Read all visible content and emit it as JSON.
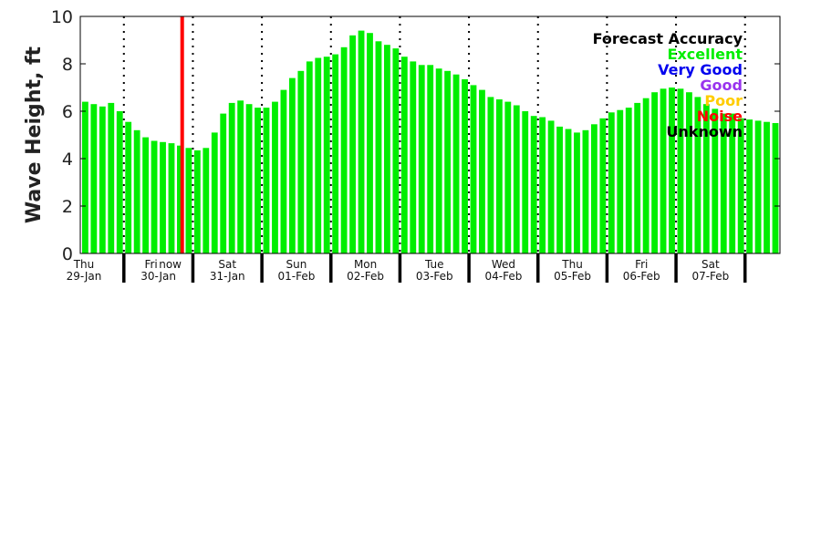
{
  "chart_data": {
    "type": "bar",
    "title": "",
    "xlabel": "",
    "ylabel": "Wave Height, ft",
    "ylim": [
      0,
      10
    ],
    "yticks": [
      "0",
      "2",
      "4",
      "6",
      "8",
      "10"
    ],
    "bar_interval_hours": 3,
    "first_day_bars": 5,
    "days": [
      {
        "dow": "Thu",
        "date": "29-Jan"
      },
      {
        "dow": "Fri",
        "date": "30-Jan"
      },
      {
        "dow": "Sat",
        "date": "31-Jan"
      },
      {
        "dow": "Sun",
        "date": "01-Feb"
      },
      {
        "dow": "Mon",
        "date": "02-Feb"
      },
      {
        "dow": "Tue",
        "date": "03-Feb"
      },
      {
        "dow": "Wed",
        "date": "04-Feb"
      },
      {
        "dow": "Thu",
        "date": "05-Feb"
      },
      {
        "dow": "Fri",
        "date": "06-Feb"
      },
      {
        "dow": "Sat",
        "date": "07-Feb"
      }
    ],
    "now_label": "now",
    "now_bar_position": 11.6,
    "values": [
      6.4,
      6.3,
      6.2,
      6.35,
      6.0,
      5.55,
      5.2,
      4.9,
      4.75,
      4.7,
      4.65,
      4.55,
      4.45,
      4.35,
      4.45,
      5.1,
      5.9,
      6.35,
      6.45,
      6.3,
      6.15,
      6.15,
      6.4,
      6.9,
      7.4,
      7.7,
      8.1,
      8.25,
      8.3,
      8.4,
      8.7,
      9.2,
      9.4,
      9.3,
      8.95,
      8.8,
      8.65,
      8.3,
      8.1,
      7.95,
      7.95,
      7.8,
      7.7,
      7.55,
      7.35,
      7.1,
      6.9,
      6.6,
      6.5,
      6.4,
      6.25,
      6.0,
      5.8,
      5.75,
      5.6,
      5.35,
      5.25,
      5.1,
      5.2,
      5.45,
      5.7,
      5.95,
      6.05,
      6.15,
      6.35,
      6.55,
      6.8,
      6.95,
      7.0,
      6.95,
      6.8,
      6.6,
      6.3,
      6.1,
      5.9,
      5.9,
      5.7,
      5.65,
      5.6,
      5.55,
      5.5
    ],
    "bar_accuracy": "Excellent",
    "legend": {
      "title": "Forecast Accuracy",
      "placement": "top-right",
      "entries": [
        {
          "label": "Excellent",
          "color": "#00ee00"
        },
        {
          "label": "Very Good",
          "color": "#0000ee"
        },
        {
          "label": "Good",
          "color": "#9933ee"
        },
        {
          "label": "Poor",
          "color": "#ffcc00"
        },
        {
          "label": "Noise",
          "color": "#ff0000"
        },
        {
          "label": "Unknown",
          "color": "#000000"
        }
      ]
    },
    "colors": {
      "bar": "#00ee00",
      "now": "#ff0000"
    }
  }
}
